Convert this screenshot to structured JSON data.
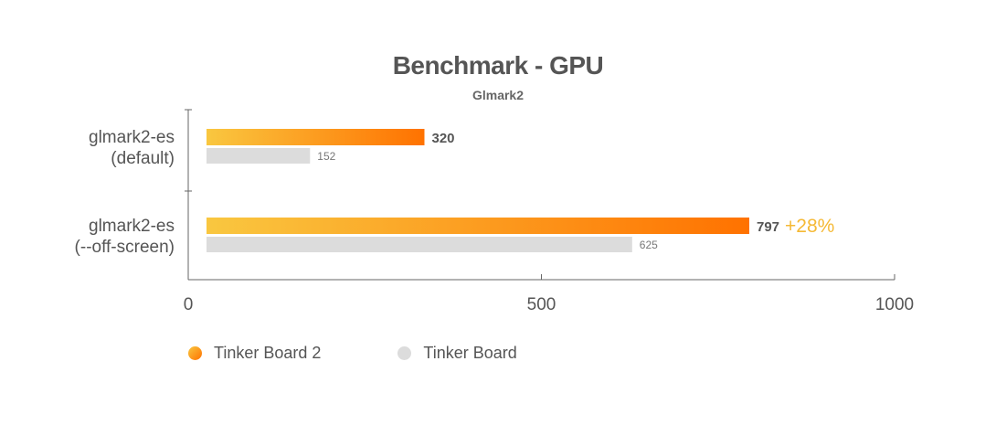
{
  "title": "Benchmark - GPU",
  "subtitle": "Glmark2",
  "colors": {
    "primary_start": "#f9c740",
    "primary_end": "#ff7200",
    "secondary": "#dcdcdc",
    "axis": "#666666",
    "text": "#555555",
    "highlight": "#f5b935"
  },
  "chart_data": {
    "type": "bar",
    "orientation": "horizontal",
    "title": "Benchmark - GPU",
    "subtitle": "Glmark2",
    "categories": [
      [
        "glmark2-es",
        "(default)"
      ],
      [
        "glmark2-es",
        "(--off-screen)"
      ]
    ],
    "series": [
      {
        "name": "Tinker Board 2",
        "values": [
          320,
          797
        ]
      },
      {
        "name": "Tinker Board",
        "values": [
          152,
          625
        ]
      }
    ],
    "annotations": [
      {
        "category_index": 1,
        "series_index": 0,
        "text": "+28%"
      }
    ],
    "xlim": [
      0,
      1000
    ],
    "xticks": [
      0,
      500,
      1000
    ],
    "grid": false,
    "legend": "bottom-left"
  }
}
